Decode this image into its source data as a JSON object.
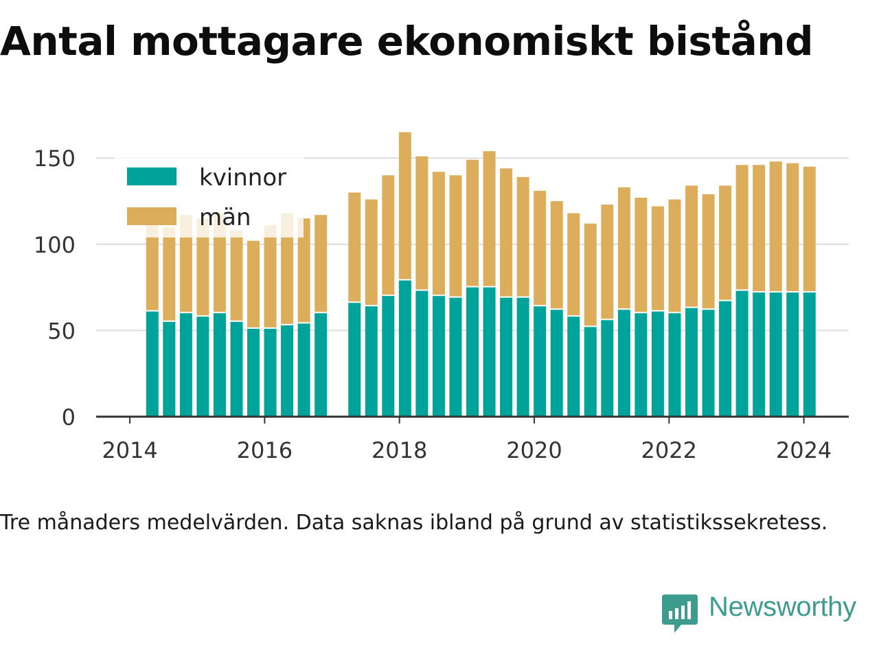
{
  "title": "Antal mottagare ekonomiskt bistånd",
  "note": "Tre månaders medelvärden. Data saknas ibland på grund av statistikssekretess.",
  "brand": "Newsworthy",
  "colors": {
    "kvinnor": "#00a39a",
    "man": "#dcae5c",
    "grid": "#dddddd",
    "axis": "#333333",
    "brand": "#3e9c8e"
  },
  "chart_data": {
    "type": "bar",
    "stacked": true,
    "xlabel": "",
    "ylabel": "",
    "xlim": [
      "2013-07",
      "2024-09"
    ],
    "ylim": [
      0,
      170
    ],
    "y_ticks": [
      0,
      50,
      100,
      150
    ],
    "x_ticks": [
      "2014",
      "2016",
      "2018",
      "2020",
      "2022",
      "2024"
    ],
    "grid": true,
    "legend_position": "top-left",
    "categories": [
      "2014-05",
      "2014-08",
      "2014-11",
      "2015-02",
      "2015-05",
      "2015-08",
      "2015-11",
      "2016-02",
      "2016-05",
      "2016-08",
      "2016-11",
      "2017-05",
      "2017-08",
      "2017-11",
      "2018-02",
      "2018-05",
      "2018-08",
      "2018-11",
      "2019-02",
      "2019-05",
      "2019-08",
      "2019-11",
      "2020-02",
      "2020-05",
      "2020-08",
      "2020-11",
      "2021-02",
      "2021-05",
      "2021-08",
      "2021-11",
      "2022-02",
      "2022-05",
      "2022-08",
      "2022-11",
      "2023-02",
      "2023-05",
      "2023-08",
      "2023-11",
      "2024-02"
    ],
    "series": [
      {
        "name": "kvinnor",
        "values": [
          61,
          55,
          60,
          58,
          60,
          55,
          51,
          51,
          53,
          54,
          60,
          66,
          64,
          70,
          79,
          73,
          70,
          69,
          75,
          75,
          69,
          69,
          64,
          62,
          58,
          52,
          56,
          62,
          60,
          61,
          60,
          63,
          62,
          67,
          73,
          72,
          72,
          72,
          72
        ]
      },
      {
        "name": "män",
        "values": [
          57,
          55,
          57,
          57,
          58,
          53,
          51,
          60,
          65,
          61,
          57,
          64,
          62,
          70,
          86,
          78,
          72,
          71,
          74,
          79,
          75,
          70,
          67,
          63,
          60,
          60,
          67,
          71,
          67,
          61,
          66,
          71,
          67,
          67,
          73,
          74,
          76,
          75,
          73
        ]
      }
    ]
  }
}
